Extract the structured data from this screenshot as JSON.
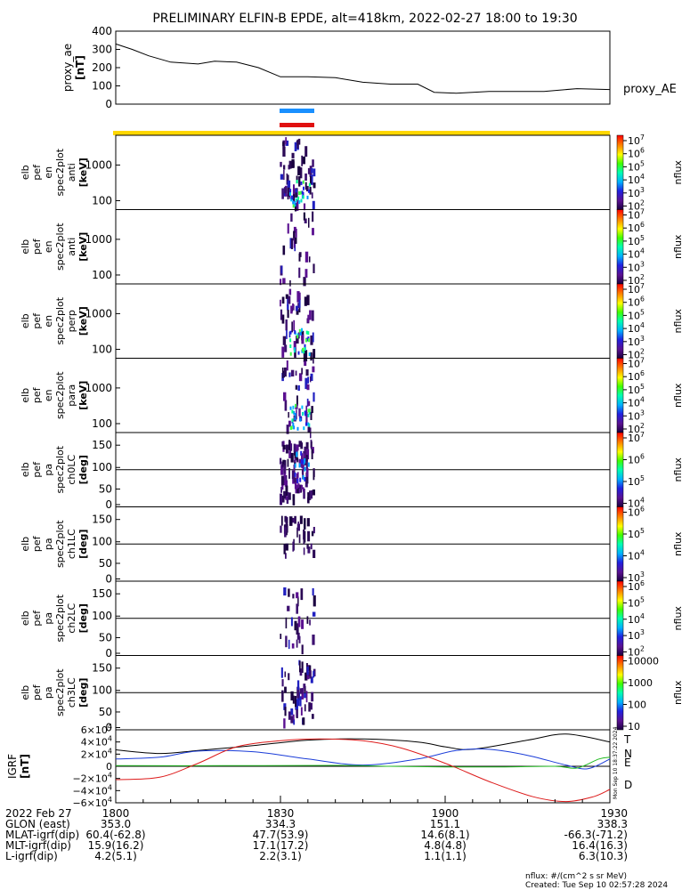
{
  "title": "PRELIMINARY ELFIN-B EPDE, alt=418km, 2022-02-27 18:00 to 19:30",
  "chart_data": [
    {
      "type": "line",
      "ylabel_lines": [
        "proxy_ae",
        "[nT]"
      ],
      "series_label": "proxy_AE",
      "yticks": [
        "400",
        "300",
        "200",
        "100",
        "0"
      ],
      "ylim": [
        0,
        400
      ],
      "x_minutes": [
        0,
        3,
        6,
        10,
        15,
        18,
        22,
        26,
        30,
        35,
        40,
        45,
        50,
        55,
        58,
        62,
        68,
        72,
        78,
        84,
        90
      ],
      "values": [
        330,
        300,
        265,
        230,
        220,
        235,
        230,
        200,
        150,
        150,
        145,
        120,
        110,
        110,
        65,
        60,
        70,
        70,
        70,
        85,
        80
      ]
    },
    {
      "type": "heatmap",
      "panels": [
        {
          "label_lines": [
            "elb",
            "pef",
            "en",
            "spec2plot",
            "anti",
            "[keV]"
          ],
          "yticks": [
            "1000",
            "100"
          ],
          "cbar_ticks": [
            "10^7",
            "10^6",
            "10^5",
            "10^4",
            "10^3",
            "10^2"
          ],
          "cbar_label": "nflux"
        },
        {
          "label_lines": [
            "elb",
            "pef",
            "en",
            "spec2plot",
            "anti",
            "[keV]"
          ],
          "yticks": [
            "1000",
            "100"
          ],
          "cbar_ticks": [
            "10^7",
            "10^6",
            "10^5",
            "10^4",
            "10^3",
            "10^2"
          ],
          "cbar_label": "nflux"
        },
        {
          "label_lines": [
            "elb",
            "pef",
            "en",
            "spec2plot",
            "perp",
            "[keV]"
          ],
          "yticks": [
            "1000",
            "100"
          ],
          "cbar_ticks": [
            "10^7",
            "10^6",
            "10^5",
            "10^4",
            "10^3",
            "10^2"
          ],
          "cbar_label": "nflux"
        },
        {
          "label_lines": [
            "elb",
            "pef",
            "en",
            "spec2plot",
            "para",
            "[keV]"
          ],
          "yticks": [
            "1000",
            "100"
          ],
          "cbar_ticks": [
            "10^7",
            "10^6",
            "10^5",
            "10^4",
            "10^3",
            "10^2"
          ],
          "cbar_label": "nflux"
        },
        {
          "label_lines": [
            "elb",
            "pef",
            "pa",
            "spec2plot",
            "ch0LC",
            "[deg]"
          ],
          "yticks": [
            "150",
            "100",
            "50",
            "0"
          ],
          "cbar_ticks": [
            "10^7",
            "10^6",
            "10^5",
            "10^4"
          ],
          "cbar_label": "nflux"
        },
        {
          "label_lines": [
            "elb",
            "pef",
            "pa",
            "spec2plot",
            "ch1LC",
            "[deg]"
          ],
          "yticks": [
            "150",
            "100",
            "50",
            "0"
          ],
          "cbar_ticks": [
            "10^6",
            "10^5",
            "10^4",
            "10^3"
          ],
          "cbar_label": "nflux"
        },
        {
          "label_lines": [
            "elb",
            "pef",
            "pa",
            "spec2plot",
            "ch2LC",
            "[deg]"
          ],
          "yticks": [
            "150",
            "100",
            "50",
            "0"
          ],
          "cbar_ticks": [
            "10^6",
            "10^5",
            "10^4",
            "10^3",
            "10^2"
          ],
          "cbar_label": "nflux"
        },
        {
          "label_lines": [
            "elb",
            "pef",
            "pa",
            "spec2plot",
            "ch3LC",
            "[deg]"
          ],
          "yticks": [
            "150",
            "100",
            "50",
            "0"
          ],
          "cbar_ticks": [
            "10000",
            "1000",
            "100",
            "10"
          ],
          "cbar_label": "nflux"
        }
      ]
    },
    {
      "type": "line",
      "ylabel_lines": [
        "IGRF",
        "[nT]"
      ],
      "yticks": [
        "6×10^4",
        "4×10^4",
        "2×10^4",
        "0",
        "−2×10^4",
        "−4×10^4",
        "−6×10^4"
      ],
      "ylim": [
        -60000,
        60000
      ],
      "legend": [
        "T",
        "N",
        "E",
        "D"
      ],
      "series": [
        {
          "name": "T",
          "color": "#000000",
          "x_minutes": [
            0,
            8,
            15,
            25,
            35,
            45,
            55,
            60,
            65,
            75,
            82,
            90
          ],
          "values": [
            27000,
            21000,
            26000,
            34000,
            43000,
            45000,
            40000,
            32000,
            28000,
            43000,
            53000,
            40000
          ]
        },
        {
          "name": "N",
          "color": "#1a3cd8",
          "x_minutes": [
            0,
            8,
            15,
            25,
            35,
            45,
            55,
            62,
            68,
            75,
            82,
            86,
            90
          ],
          "values": [
            12000,
            15000,
            25000,
            24000,
            12000,
            2000,
            12000,
            26000,
            28000,
            18000,
            2000,
            -4000,
            12000
          ]
        },
        {
          "name": "E",
          "color": "#22bb22",
          "x_minutes": [
            0,
            20,
            40,
            50,
            60,
            70,
            80,
            84,
            88,
            90
          ],
          "values": [
            1000,
            1000,
            1500,
            0,
            -1000,
            -1000,
            0,
            -3000,
            12000,
            15000
          ]
        },
        {
          "name": "D",
          "color": "#dd1a1a",
          "x_minutes": [
            0,
            8,
            15,
            22,
            30,
            37,
            45,
            52,
            60,
            68,
            76,
            82,
            87,
            90
          ],
          "values": [
            -22000,
            -18000,
            5000,
            32000,
            42000,
            45000,
            42000,
            30000,
            5000,
            -25000,
            -50000,
            -58000,
            -50000,
            -38000
          ]
        }
      ]
    }
  ],
  "xaxis": {
    "rows": [
      {
        "label": "2022 Feb 27",
        "values": [
          "1800",
          "1830",
          "1900",
          "1930"
        ]
      },
      {
        "label": "GLON (east)",
        "values": [
          "353.0",
          "334.3",
          "151.1",
          "338.3"
        ]
      },
      {
        "label": "MLAT-igrf(dip)",
        "values": [
          "60.4(-62.8)",
          "47.7(53.9)",
          "14.6(8.1)",
          "-66.3(-71.2)"
        ]
      },
      {
        "label": "MLT-igrf(dip)",
        "values": [
          "15.9(16.2)",
          "17.1(17.2)",
          "4.8(4.8)",
          "16.4(16.3)"
        ]
      },
      {
        "label": "L-igrf(dip)",
        "values": [
          "4.2(5.1)",
          "2.2(3.1)",
          "1.1(1.1)",
          "6.3(10.3)"
        ]
      }
    ]
  },
  "footer": {
    "units": "nflux: #/(cm^2 s sr MeV)",
    "created": "Created: Tue Sep 10 02:57:28 2024",
    "side_stamp": "Mon Sep 10 18:37:22 2024"
  },
  "colors": {
    "bar_blue": "#1a90ff",
    "bar_red": "#e01010",
    "bar_yellow": "#ffd700"
  }
}
